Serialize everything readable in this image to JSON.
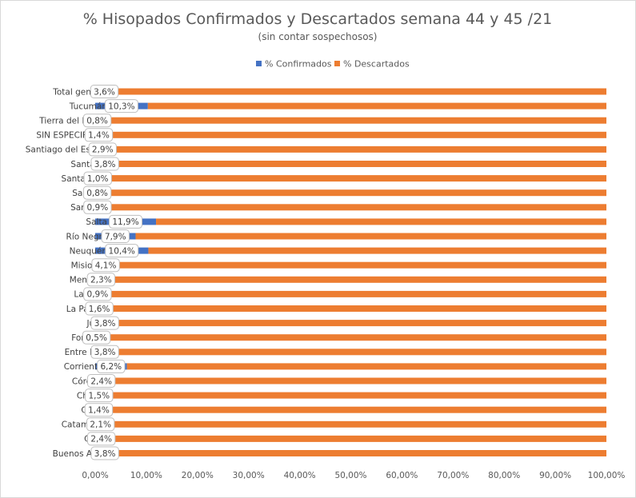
{
  "chart_data": {
    "type": "bar",
    "orientation": "horizontal",
    "stacked": "percent",
    "title": "% Hisopados  Confirmados  y  Descartados  semana  44 y 45 /21",
    "subtitle": "(sin contar sospechosos)",
    "categories": [
      "Total general",
      "Tucumán",
      "Tierra del Fuego",
      "SIN ESPECIFICAR",
      "Santiago del Estero",
      "Santa Fe",
      "Santa Cruz",
      "San Luis",
      "San Juan",
      "Salta",
      "Río Negro",
      "Neuquén",
      "Misiones",
      "Mendoza",
      "La Rioja",
      "La Pampa",
      "Jujuy",
      "Formosa",
      "Entre Ríos",
      "Corrientes",
      "Córdoba",
      "Chubut",
      "Chaco",
      "Catamarca",
      "CABA",
      "Buenos Aires"
    ],
    "series": [
      {
        "name": "% Confirmados",
        "color": "#4472c4",
        "values": [
          3.6,
          10.3,
          0.8,
          1.4,
          2.9,
          3.8,
          1.0,
          0.8,
          0.9,
          11.9,
          7.9,
          10.4,
          4.1,
          2.3,
          0.9,
          1.6,
          3.8,
          0.5,
          3.8,
          6.2,
          2.4,
          1.5,
          1.4,
          2.1,
          2.4,
          3.8
        ]
      },
      {
        "name": "% Descartados",
        "color": "#ed7d31",
        "values": [
          96.4,
          89.7,
          99.2,
          98.6,
          97.1,
          96.2,
          99.0,
          99.2,
          99.1,
          88.1,
          92.1,
          89.6,
          95.9,
          97.7,
          99.1,
          98.4,
          96.2,
          99.5,
          96.2,
          93.8,
          97.6,
          98.5,
          98.6,
          97.9,
          97.6,
          96.2
        ]
      }
    ],
    "data_labels": [
      "3,6%",
      "10,3%",
      "0,8%",
      "1,4%",
      "2,9%",
      "3,8%",
      "1,0%",
      "0,8%",
      "0,9%",
      "11,9%",
      "7,9%",
      "10,4%",
      "4,1%",
      "2,3%",
      "0,9%",
      "1,6%",
      "3,8%",
      "0,5%",
      "3,8%",
      "6,2%",
      "2,4%",
      "1,5%",
      "1,4%",
      "2,1%",
      "2,4%",
      "3,8%"
    ],
    "xlim": [
      0,
      100
    ],
    "x_ticks": [
      "0,00%",
      "10,00%",
      "20,00%",
      "30,00%",
      "40,00%",
      "50,00%",
      "60,00%",
      "70,00%",
      "80,00%",
      "90,00%",
      "100,00%"
    ],
    "legend_position": "top",
    "grid": false
  }
}
